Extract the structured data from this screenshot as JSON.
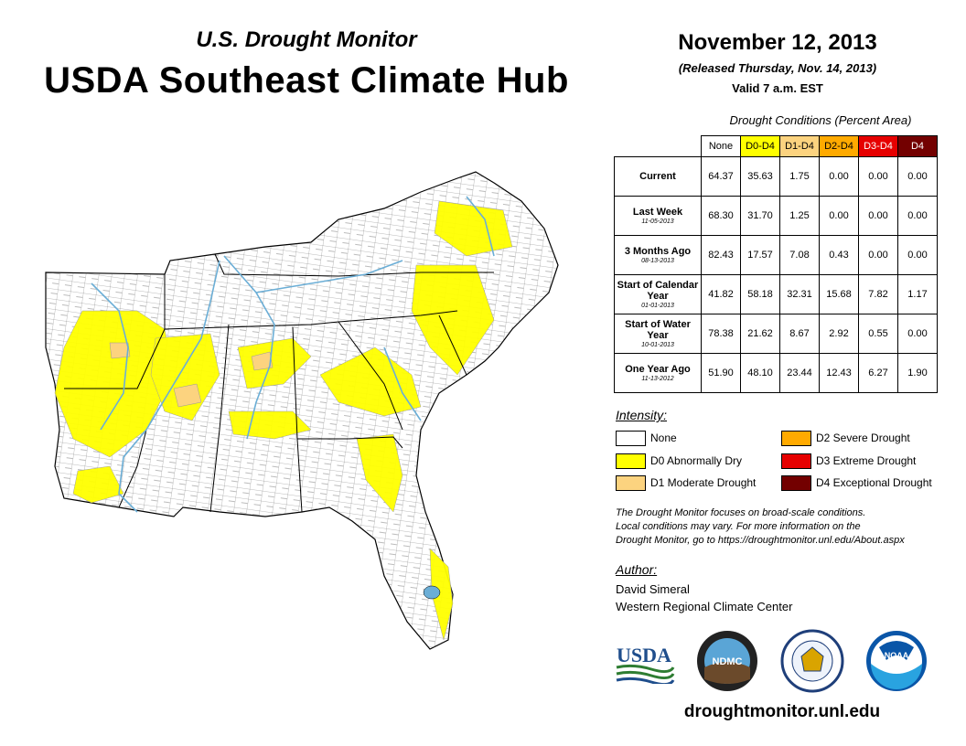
{
  "header": {
    "super_title": "U.S. Drought Monitor",
    "title": "USDA Southeast Climate Hub",
    "date": "November 12, 2013",
    "released": "(Released Thursday, Nov. 14, 2013)",
    "valid": "Valid 7 a.m. EST"
  },
  "table": {
    "title": "Drought Conditions (Percent Area)",
    "columns": [
      {
        "label": "None",
        "color": "#ffffff",
        "text_color": "#000000"
      },
      {
        "label": "D0-D4",
        "color": "#ffff00",
        "text_color": "#000000"
      },
      {
        "label": "D1-D4",
        "color": "#fcd37f",
        "text_color": "#000000"
      },
      {
        "label": "D2-D4",
        "color": "#ffaa00",
        "text_color": "#000000"
      },
      {
        "label": "D3-D4",
        "color": "#e60000",
        "text_color": "#ffffff"
      },
      {
        "label": "D4",
        "color": "#730000",
        "text_color": "#ffffff"
      }
    ],
    "rows": [
      {
        "label": "Current",
        "date": "",
        "values": [
          "64.37",
          "35.63",
          "1.75",
          "0.00",
          "0.00",
          "0.00"
        ]
      },
      {
        "label": "Last Week",
        "date": "11-05-2013",
        "values": [
          "68.30",
          "31.70",
          "1.25",
          "0.00",
          "0.00",
          "0.00"
        ]
      },
      {
        "label": "3 Months Ago",
        "date": "08-13-2013",
        "values": [
          "82.43",
          "17.57",
          "7.08",
          "0.43",
          "0.00",
          "0.00"
        ]
      },
      {
        "label": "Start of Calendar Year",
        "date": "01-01-2013",
        "values": [
          "41.82",
          "58.18",
          "32.31",
          "15.68",
          "7.82",
          "1.17"
        ]
      },
      {
        "label": "Start of Water Year",
        "date": "10-01-2013",
        "values": [
          "78.38",
          "21.62",
          "8.67",
          "2.92",
          "0.55",
          "0.00"
        ]
      },
      {
        "label": "One Year Ago",
        "date": "11-13-2012",
        "values": [
          "51.90",
          "48.10",
          "23.44",
          "12.43",
          "6.27",
          "1.90"
        ]
      }
    ]
  },
  "legend": {
    "title": "Intensity:",
    "items": [
      {
        "label": "None",
        "color": "#ffffff"
      },
      {
        "label": "D0 Abnormally Dry",
        "color": "#ffff00"
      },
      {
        "label": "D1 Moderate Drought",
        "color": "#fcd37f"
      },
      {
        "label": "D2 Severe Drought",
        "color": "#ffaa00"
      },
      {
        "label": "D3 Extreme Drought",
        "color": "#e60000"
      },
      {
        "label": "D4 Exceptional Drought",
        "color": "#730000"
      }
    ]
  },
  "note": {
    "line1": "The Drought Monitor focuses on broad-scale conditions.",
    "line2": "Local conditions may vary. For more information on the",
    "line3": "Drought Monitor, go to https://droughtmonitor.unl.edu/About.aspx"
  },
  "author": {
    "title": "Author:",
    "name": "David Simeral",
    "org": "Western Regional Climate Center"
  },
  "logos": {
    "usda": "USDA",
    "ndmc": "NDMC",
    "noaa": "NOAA"
  },
  "website": "droughtmonitor.unl.edu",
  "colors": {
    "water": "#6baed6",
    "d0": "#ffff00",
    "d1": "#fcd37f",
    "border": "#000000"
  }
}
